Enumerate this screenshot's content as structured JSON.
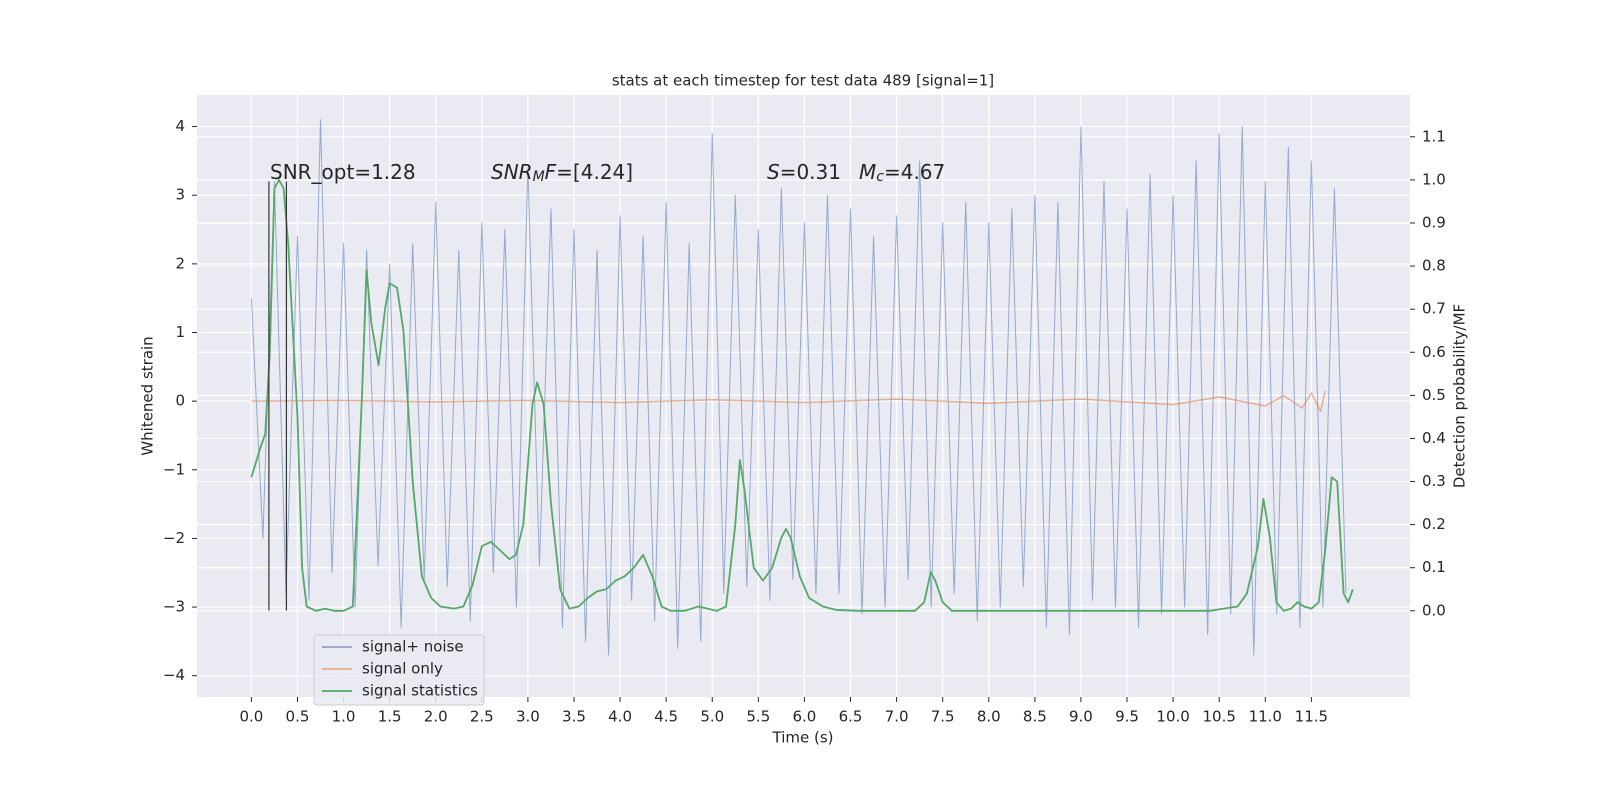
{
  "chart_data": {
    "type": "line",
    "title": "stats at each timestep for test data 489 [signal=1]",
    "xlabel": "Time (s)",
    "ylabel": "Whitened strain",
    "y2label": "Detection probability/MF",
    "xlim": [
      -0.59,
      12.57
    ],
    "ylim": [
      -4.31,
      4.46
    ],
    "y2lim": [
      -0.2,
      1.197
    ],
    "xticks": [
      {
        "value": 0,
        "label": "0.0"
      },
      {
        "value": 0.5,
        "label": "0.5"
      },
      {
        "value": 1,
        "label": "1.0"
      },
      {
        "value": 1.5,
        "label": "1.5"
      },
      {
        "value": 2,
        "label": "2.0"
      },
      {
        "value": 2.5,
        "label": "2.5"
      },
      {
        "value": 3,
        "label": "3.0"
      },
      {
        "value": 3.5,
        "label": "3.5"
      },
      {
        "value": 4,
        "label": "4.0"
      },
      {
        "value": 4.5,
        "label": "4.5"
      },
      {
        "value": 5,
        "label": "5.0"
      },
      {
        "value": 5.5,
        "label": "5.5"
      },
      {
        "value": 6,
        "label": "6.0"
      },
      {
        "value": 6.5,
        "label": "6.5"
      },
      {
        "value": 7,
        "label": "7.0"
      },
      {
        "value": 7.5,
        "label": "7.5"
      },
      {
        "value": 8,
        "label": "8.0"
      },
      {
        "value": 8.5,
        "label": "8.5"
      },
      {
        "value": 9,
        "label": "9.0"
      },
      {
        "value": 9.5,
        "label": "9.5"
      },
      {
        "value": 10,
        "label": "10.0"
      },
      {
        "value": 10.5,
        "label": "10.5"
      },
      {
        "value": 11,
        "label": "11.0"
      },
      {
        "value": 11.5,
        "label": "11.5"
      }
    ],
    "yticks": [
      {
        "value": -4,
        "label": "−4"
      },
      {
        "value": -3,
        "label": "−3"
      },
      {
        "value": -2,
        "label": "−2"
      },
      {
        "value": -1,
        "label": "−1"
      },
      0,
      1,
      2,
      3,
      4
    ],
    "y2ticks": [
      {
        "value": 0,
        "label": "0.0"
      },
      {
        "value": 0.1,
        "label": "0.1"
      },
      {
        "value": 0.2,
        "label": "0.2"
      },
      {
        "value": 0.3,
        "label": "0.3"
      },
      {
        "value": 0.4,
        "label": "0.4"
      },
      {
        "value": 0.5,
        "label": "0.5"
      },
      {
        "value": 0.6,
        "label": "0.6"
      },
      {
        "value": 0.7,
        "label": "0.7"
      },
      {
        "value": 0.8,
        "label": "0.8"
      },
      {
        "value": 0.9,
        "label": "0.9"
      },
      {
        "value": 1,
        "label": "1.0"
      },
      {
        "value": 1.1,
        "label": "1.1"
      }
    ],
    "grid": true,
    "legend": "lower left",
    "series": [
      {
        "name": "signal+ noise",
        "color": "#4c72b0",
        "x": [
          0,
          0.125,
          0.25,
          0.375,
          0.5,
          0.625,
          0.75,
          0.875,
          1,
          1.125,
          1.25,
          1.375,
          1.5,
          1.625,
          1.75,
          1.875,
          2,
          2.125,
          2.25,
          2.375,
          2.5,
          2.625,
          2.75,
          2.875,
          3,
          3.125,
          3.25,
          3.375,
          3.5,
          3.625,
          3.75,
          3.875,
          4,
          4.125,
          4.25,
          4.375,
          4.5,
          4.625,
          4.75,
          4.875,
          5,
          5.125,
          5.25,
          5.375,
          5.5,
          5.625,
          5.75,
          5.875,
          6,
          6.125,
          6.25,
          6.375,
          6.5,
          6.625,
          6.75,
          6.875,
          7,
          7.125,
          7.25,
          7.375,
          7.5,
          7.625,
          7.75,
          7.875,
          8,
          8.125,
          8.25,
          8.375,
          8.5,
          8.625,
          8.75,
          8.875,
          9,
          9.125,
          9.25,
          9.375,
          9.5,
          9.625,
          9.75,
          9.875,
          10,
          10.125,
          10.25,
          10.375,
          10.5,
          10.625,
          10.75,
          10.875,
          11,
          11.125,
          11.25,
          11.375,
          11.5,
          11.625,
          11.75,
          11.875
        ],
        "values": [
          1.5,
          -2.0,
          3.2,
          -2.8,
          2.4,
          -2.9,
          4.1,
          -2.5,
          2.3,
          -3.0,
          2.2,
          -2.4,
          2.0,
          -3.3,
          2.3,
          -2.6,
          2.9,
          -2.7,
          2.2,
          -3.2,
          2.6,
          -2.5,
          2.5,
          -3.0,
          3.4,
          -2.4,
          2.8,
          -3.3,
          2.5,
          -3.5,
          2.2,
          -3.7,
          2.7,
          -2.9,
          2.4,
          -3.2,
          2.9,
          -3.6,
          2.3,
          -3.5,
          3.9,
          -2.8,
          3.0,
          -2.7,
          2.5,
          -2.9,
          3.1,
          -2.6,
          2.6,
          -2.8,
          3.0,
          -2.8,
          2.8,
          -3.1,
          2.4,
          -3.0,
          2.7,
          -2.6,
          3.5,
          -3.0,
          2.6,
          -2.8,
          2.9,
          -3.2,
          2.6,
          -3.0,
          2.8,
          -2.7,
          3.0,
          -3.3,
          2.9,
          -3.4,
          4.0,
          -2.9,
          3.2,
          -3.0,
          2.8,
          -3.3,
          3.3,
          -3.1,
          3.0,
          -3.0,
          3.5,
          -3.4,
          3.9,
          -3.1,
          4.0,
          -3.7,
          3.2,
          -3.1,
          3.7,
          -3.3,
          3.5,
          -3.0,
          3.1,
          -2.8
        ]
      },
      {
        "name": "signal only",
        "color": "#dd8452",
        "x": [
          0,
          1,
          2,
          3,
          4,
          5,
          6,
          7,
          8,
          9,
          10,
          10.5,
          11,
          11.2,
          11.4,
          11.5,
          11.6,
          11.65
        ],
        "values": [
          0,
          0.01,
          -0.01,
          0.01,
          -0.02,
          0.02,
          -0.02,
          0.03,
          -0.03,
          0.03,
          -0.05,
          0.06,
          -0.07,
          0.08,
          -0.1,
          0.12,
          -0.15,
          0.15
        ]
      },
      {
        "name": "signal statistics",
        "color": "#55a868",
        "axis": "y2",
        "x": [
          0,
          0.1,
          0.15,
          0.2,
          0.25,
          0.3,
          0.35,
          0.4,
          0.5,
          0.55,
          0.6,
          0.7,
          0.8,
          0.9,
          1.0,
          1.1,
          1.2,
          1.25,
          1.3,
          1.38,
          1.45,
          1.5,
          1.58,
          1.65,
          1.75,
          1.85,
          1.95,
          2.05,
          2.2,
          2.3,
          2.4,
          2.5,
          2.6,
          2.7,
          2.8,
          2.87,
          2.95,
          3.05,
          3.1,
          3.17,
          3.25,
          3.35,
          3.45,
          3.55,
          3.65,
          3.75,
          3.85,
          3.95,
          4.05,
          4.15,
          4.25,
          4.35,
          4.45,
          4.55,
          4.7,
          4.85,
          4.95,
          5.05,
          5.15,
          5.25,
          5.3,
          5.35,
          5.45,
          5.55,
          5.65,
          5.75,
          5.8,
          5.85,
          5.95,
          6.05,
          6.2,
          6.35,
          6.6,
          7.2,
          7.3,
          7.37,
          7.42,
          7.5,
          7.6,
          8.0,
          9.0,
          10.0,
          10.4,
          10.55,
          10.7,
          10.8,
          10.92,
          10.98,
          11.05,
          11.12,
          11.2,
          11.28,
          11.35,
          11.42,
          11.5,
          11.58,
          11.65,
          11.72,
          11.78,
          11.85,
          11.9,
          11.95
        ],
        "values": [
          0.31,
          0.38,
          0.41,
          0.6,
          0.98,
          1.0,
          0.98,
          0.85,
          0.45,
          0.1,
          0.01,
          0.0,
          0.005,
          0.0,
          0.0,
          0.01,
          0.5,
          0.79,
          0.67,
          0.57,
          0.7,
          0.76,
          0.75,
          0.65,
          0.3,
          0.08,
          0.03,
          0.01,
          0.005,
          0.01,
          0.06,
          0.15,
          0.16,
          0.14,
          0.12,
          0.13,
          0.2,
          0.48,
          0.53,
          0.48,
          0.25,
          0.05,
          0.005,
          0.01,
          0.03,
          0.045,
          0.05,
          0.07,
          0.08,
          0.1,
          0.13,
          0.08,
          0.01,
          0.0,
          0.0,
          0.01,
          0.005,
          0.0,
          0.01,
          0.2,
          0.35,
          0.28,
          0.1,
          0.07,
          0.1,
          0.17,
          0.19,
          0.17,
          0.08,
          0.03,
          0.01,
          0.002,
          0.0,
          0.0,
          0.02,
          0.09,
          0.07,
          0.02,
          0.0,
          0.0,
          0.0,
          0.0,
          0.0,
          0.005,
          0.01,
          0.04,
          0.15,
          0.26,
          0.17,
          0.02,
          0.0,
          0.005,
          0.02,
          0.01,
          0.005,
          0.02,
          0.14,
          0.31,
          0.3,
          0.04,
          0.02,
          0.05
        ]
      }
    ],
    "vlines": {
      "x": [
        0.19,
        0.38
      ],
      "ymin": -3.05,
      "ymax": 3.2
    },
    "annotations": [
      {
        "parts": [
          {
            "text": "SNR_opt=1.28"
          }
        ]
      },
      {
        "parts": [
          {
            "text": "SNR",
            "italic": true
          },
          {
            "text": "M",
            "italic": true,
            "sub": true
          },
          {
            "text": "F",
            "italic": true
          },
          {
            "text": "=[4.24]"
          }
        ]
      },
      {
        "parts": [
          {
            "text": "S",
            "italic": true
          },
          {
            "text": "=0.31"
          }
        ]
      },
      {
        "parts": [
          {
            "text": "M",
            "italic": true
          },
          {
            "text": "c",
            "italic": true,
            "sub": true
          },
          {
            "text": "=4.67"
          }
        ]
      }
    ]
  }
}
